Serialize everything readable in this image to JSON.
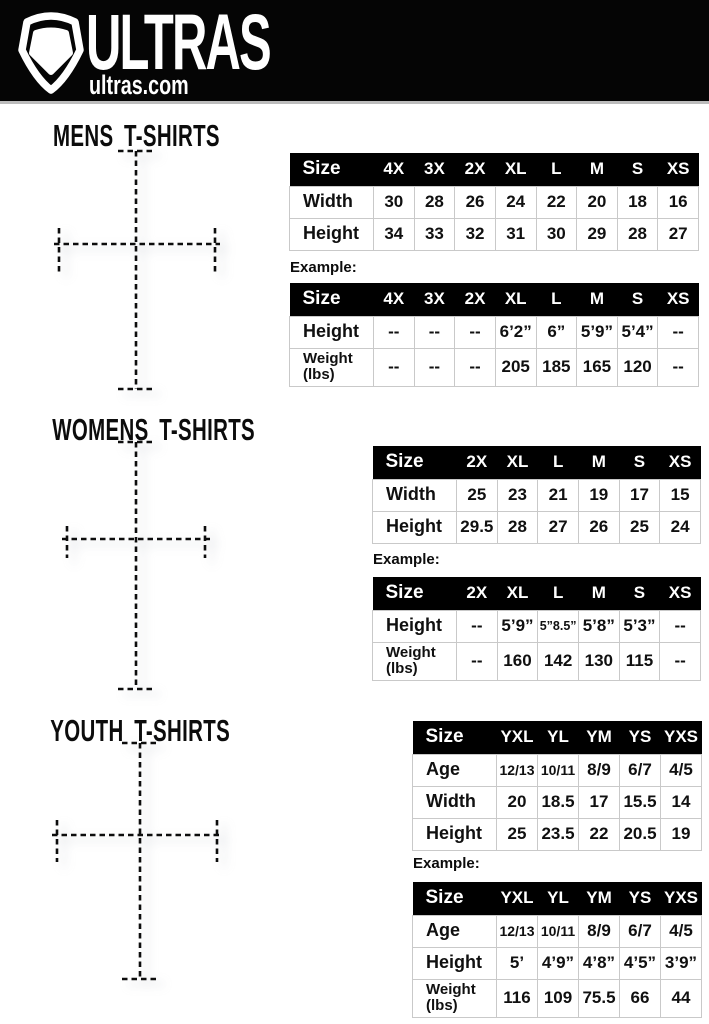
{
  "brand": {
    "name": "ULTRAS",
    "site": "ultras.com",
    "logo_icon": "pentagon-shield-icon",
    "bar_color": "#050505"
  },
  "shirt_colors": {
    "mens": "#87929e",
    "womens": "#6d7177",
    "youth": "#7a7e84"
  },
  "sections": [
    {
      "title": "MENS T-SHIRTS",
      "example_label": "Example:",
      "size_table": {
        "columns": [
          "Size",
          "4X",
          "3X",
          "2X",
          "XL",
          "L",
          "M",
          "S",
          "XS"
        ],
        "rows": [
          {
            "label": "Width",
            "values": [
              "30",
              "28",
              "26",
              "24",
              "22",
              "20",
              "18",
              "16"
            ]
          },
          {
            "label": "Height",
            "values": [
              "34",
              "33",
              "32",
              "31",
              "30",
              "29",
              "28",
              "27"
            ]
          }
        ]
      },
      "example_table": {
        "columns": [
          "Size",
          "4X",
          "3X",
          "2X",
          "XL",
          "L",
          "M",
          "S",
          "XS"
        ],
        "rows": [
          {
            "label": "Height",
            "values": [
              "--",
              "--",
              "--",
              "6’2”",
              "6”",
              "5’9”",
              "5’4”",
              "--"
            ]
          },
          {
            "label": "Weight\n(lbs)",
            "values": [
              "--",
              "--",
              "--",
              "205",
              "185",
              "165",
              "120",
              "--"
            ]
          }
        ]
      }
    },
    {
      "title": "WOMENS T-SHIRTS",
      "example_label": "Example:",
      "size_table": {
        "columns": [
          "Size",
          "2X",
          "XL",
          "L",
          "M",
          "S",
          "XS"
        ],
        "rows": [
          {
            "label": "Width",
            "values": [
              "25",
              "23",
              "21",
              "19",
              "17",
              "15"
            ]
          },
          {
            "label": "Height",
            "values": [
              "29.5",
              "28",
              "27",
              "26",
              "25",
              "24"
            ]
          }
        ]
      },
      "example_table": {
        "columns": [
          "Size",
          "2X",
          "XL",
          "L",
          "M",
          "S",
          "XS"
        ],
        "rows": [
          {
            "label": "Height",
            "values": [
              "--",
              "5’9”",
              "5”8.5”",
              "5’8”",
              "5’3”",
              "--"
            ]
          },
          {
            "label": "Weight\n(lbs)",
            "values": [
              "--",
              "160",
              "142",
              "130",
              "115",
              "--"
            ]
          }
        ]
      }
    },
    {
      "title": "YOUTH T-SHIRTS",
      "example_label": "Example:",
      "size_table": {
        "columns": [
          "Size",
          "YXL",
          "YL",
          "YM",
          "YS",
          "YXS"
        ],
        "rows": [
          {
            "label": "Age",
            "values": [
              "12/13",
              "10/11",
              "8/9",
              "6/7",
              "4/5"
            ]
          },
          {
            "label": "Width",
            "values": [
              "20",
              "18.5",
              "17",
              "15.5",
              "14"
            ]
          },
          {
            "label": "Height",
            "values": [
              "25",
              "23.5",
              "22",
              "20.5",
              "19"
            ]
          }
        ]
      },
      "example_table": {
        "columns": [
          "Size",
          "YXL",
          "YL",
          "YM",
          "YS",
          "YXS"
        ],
        "rows": [
          {
            "label": "Age",
            "values": [
              "12/13",
              "10/11",
              "8/9",
              "6/7",
              "4/5"
            ]
          },
          {
            "label": "Height",
            "values": [
              "5’",
              "4’9”",
              "4’8”",
              "4’5”",
              "3’9”"
            ]
          },
          {
            "label": "Weight\n(lbs)",
            "values": [
              "116",
              "109",
              "75.5",
              "66",
              "44"
            ]
          }
        ]
      }
    }
  ]
}
